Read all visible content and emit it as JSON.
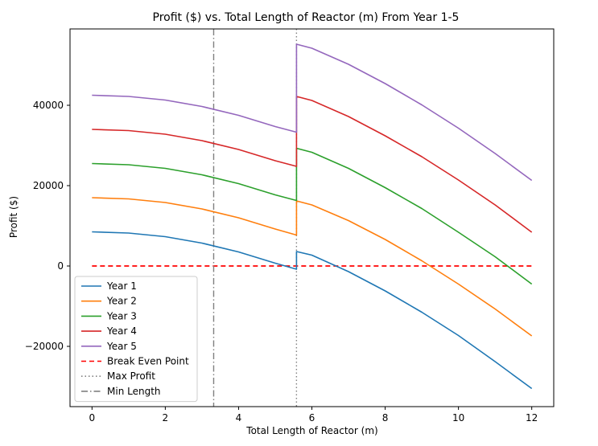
{
  "chart_data": {
    "type": "line",
    "title": "Profit ($) vs. Total Length of Reactor (m) From Year 1-5",
    "xlabel": "Total Length of Reactor (m)",
    "ylabel": "Profit ($)",
    "xlim": [
      -0.6,
      12.6
    ],
    "ylim": [
      -35000,
      59000
    ],
    "xticks": [
      0,
      2,
      4,
      6,
      8,
      10,
      12
    ],
    "yticks": [
      -20000,
      0,
      20000,
      40000
    ],
    "xtick_labels": [
      "0",
      "2",
      "4",
      "6",
      "8",
      "10",
      "12"
    ],
    "ytick_labels": [
      "−20000",
      "0",
      "20000",
      "40000"
    ],
    "grid": false,
    "legend_position": "lower-left",
    "series": [
      {
        "name": "Year 1",
        "color": "#1f77b4",
        "style": "solid",
        "x": [
          0,
          1,
          2,
          3,
          4,
          5,
          5.58,
          5.58,
          6,
          7,
          8,
          9,
          10,
          11,
          12
        ],
        "y": [
          8500,
          8200,
          7300,
          5700,
          3500,
          700,
          -800,
          3600,
          2700,
          -1400,
          -6200,
          -11500,
          -17300,
          -23800,
          -30500
        ]
      },
      {
        "name": "Year 2",
        "color": "#ff7f0e",
        "style": "solid",
        "x": [
          0,
          1,
          2,
          3,
          4,
          5,
          5.58,
          5.58,
          6,
          7,
          8,
          9,
          10,
          11,
          12
        ],
        "y": [
          17000,
          16700,
          15800,
          14200,
          12000,
          9200,
          7700,
          16200,
          15200,
          11300,
          6600,
          1300,
          -4500,
          -10700,
          -17400
        ]
      },
      {
        "name": "Year 3",
        "color": "#2ca02c",
        "style": "solid",
        "x": [
          0,
          1,
          2,
          3,
          4,
          5,
          5.58,
          5.58,
          6,
          7,
          8,
          9,
          10,
          11,
          12
        ],
        "y": [
          25500,
          25200,
          24300,
          22700,
          20500,
          17700,
          16300,
          29300,
          28300,
          24300,
          19500,
          14300,
          8400,
          2300,
          -4500
        ]
      },
      {
        "name": "Year 4",
        "color": "#d62728",
        "style": "solid",
        "x": [
          0,
          1,
          2,
          3,
          4,
          5,
          5.58,
          5.58,
          6,
          7,
          8,
          9,
          10,
          11,
          12
        ],
        "y": [
          34000,
          33700,
          32800,
          31200,
          29000,
          26200,
          24800,
          42200,
          41200,
          37200,
          32400,
          27200,
          21400,
          15200,
          8400
        ]
      },
      {
        "name": "Year 5",
        "color": "#9467bd",
        "style": "solid",
        "x": [
          0,
          1,
          2,
          3,
          4,
          5,
          5.58,
          5.58,
          6,
          7,
          8,
          9,
          10,
          11,
          12
        ],
        "y": [
          42500,
          42200,
          41300,
          39700,
          37500,
          34700,
          33300,
          55200,
          54200,
          50200,
          45400,
          40100,
          34300,
          28000,
          21300
        ]
      }
    ],
    "reference_lines": [
      {
        "name": "Break Even Point",
        "orientation": "horizontal",
        "value": 0,
        "x_range": [
          0,
          12
        ],
        "color": "#ff0000",
        "style": "dashed"
      },
      {
        "name": "Max Profit",
        "orientation": "vertical",
        "value": 5.58,
        "color": "#808080",
        "style": "dotted"
      },
      {
        "name": "Min Length",
        "orientation": "vertical",
        "value": 3.32,
        "color": "#808080",
        "style": "dashdot"
      }
    ]
  }
}
